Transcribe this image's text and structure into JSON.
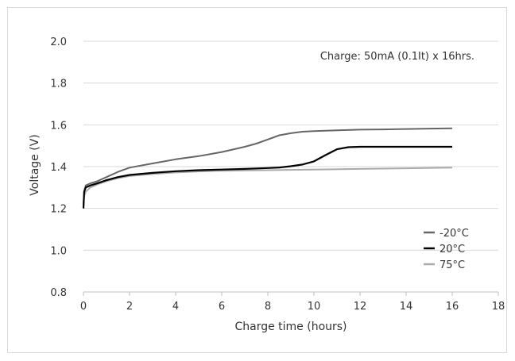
{
  "chart_data": {
    "type": "line",
    "title": "",
    "annotation": "Charge: 50mA (0.1It) x 16hrs.",
    "xlabel": "Charge time (hours)",
    "ylabel": "Voltage (V)",
    "xlim": [
      0,
      18
    ],
    "ylim": [
      0.8,
      2.0
    ],
    "xticks": [
      0,
      2,
      4,
      6,
      8,
      10,
      12,
      14,
      16,
      18
    ],
    "xtick_labels": [
      "0",
      "2",
      "4",
      "6",
      "8",
      "10",
      "12",
      "14",
      "16",
      "18"
    ],
    "yticks": [
      0.8,
      1.0,
      1.2,
      1.4,
      1.6,
      1.8,
      2.0
    ],
    "ytick_labels": [
      "0.8",
      "1.0",
      "1.2",
      "1.4",
      "1.6",
      "1.8",
      "2.0"
    ],
    "grid": "horizontal",
    "legend_position": "bottom-right",
    "series": [
      {
        "name": "-20°C",
        "color": "#666666",
        "x": [
          0,
          0.05,
          0.1,
          0.3,
          0.6,
          1,
          1.5,
          2,
          3,
          4,
          5,
          6,
          7,
          7.5,
          8,
          8.5,
          9,
          9.5,
          10,
          11,
          12,
          13,
          14,
          15,
          16
        ],
        "y": [
          1.22,
          1.29,
          1.31,
          1.32,
          1.33,
          1.35,
          1.375,
          1.395,
          1.415,
          1.435,
          1.45,
          1.47,
          1.495,
          1.51,
          1.53,
          1.55,
          1.56,
          1.567,
          1.57,
          1.574,
          1.577,
          1.578,
          1.58,
          1.582,
          1.583
        ]
      },
      {
        "name": "20°C",
        "color": "#000000",
        "x": [
          0,
          0.03,
          0.1,
          0.3,
          0.6,
          1,
          1.5,
          2,
          3,
          4,
          5,
          6,
          7,
          8,
          8.5,
          9,
          9.5,
          10,
          10.5,
          11,
          11.5,
          12,
          13,
          14,
          15,
          16
        ],
        "y": [
          1.2,
          1.28,
          1.3,
          1.31,
          1.32,
          1.335,
          1.35,
          1.36,
          1.37,
          1.378,
          1.383,
          1.386,
          1.389,
          1.393,
          1.396,
          1.402,
          1.41,
          1.425,
          1.455,
          1.483,
          1.493,
          1.495,
          1.495,
          1.495,
          1.495,
          1.495
        ]
      },
      {
        "name": "75°C",
        "color": "#aaaaaa",
        "x": [
          0,
          0.03,
          0.1,
          0.3,
          0.6,
          1,
          1.5,
          2,
          3,
          4,
          5,
          6,
          8,
          10,
          12,
          14,
          16
        ],
        "y": [
          1.21,
          1.26,
          1.28,
          1.3,
          1.315,
          1.33,
          1.345,
          1.355,
          1.365,
          1.372,
          1.377,
          1.38,
          1.383,
          1.386,
          1.389,
          1.392,
          1.395
        ]
      }
    ]
  }
}
